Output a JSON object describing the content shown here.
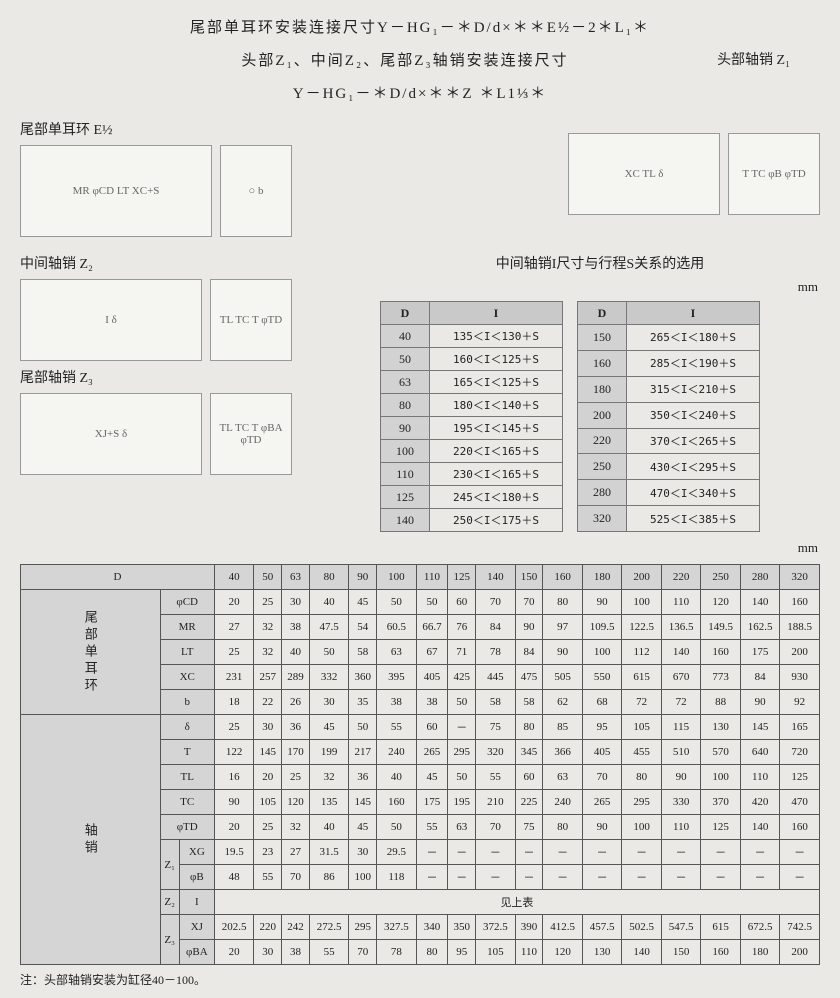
{
  "titles": {
    "line1": "尾部单耳环安装连接尺寸Y－HG₁－＊D/d×＊＊E½－2＊L₁＊",
    "line2": "头部Z₁、中间Z₂、尾部Z₃轴销安装连接尺寸",
    "line3": "Y－HG₁－＊D/d×＊＊Z ＊L1⅓＊"
  },
  "labels": {
    "e12": "尾部单耳环  E½",
    "z1": "头部轴销  Z₁",
    "z2": "中间轴销  Z₂",
    "z3": "尾部轴销  Z₃",
    "di_title": "中间轴销I尺寸与行程S关系的选用",
    "see_above": "见上表",
    "note": "注：头部轴销安装为缸径40－100。",
    "mm": "mm"
  },
  "di_left": {
    "headers": [
      "D",
      "I"
    ],
    "rows": [
      [
        "40",
        "135＜I＜130＋S"
      ],
      [
        "50",
        "160＜I＜125＋S"
      ],
      [
        "63",
        "165＜I＜125＋S"
      ],
      [
        "80",
        "180＜I＜140＋S"
      ],
      [
        "90",
        "195＜I＜145＋S"
      ],
      [
        "100",
        "220＜I＜165＋S"
      ],
      [
        "110",
        "230＜I＜165＋S"
      ],
      [
        "125",
        "245＜I＜180＋S"
      ],
      [
        "140",
        "250＜I＜175＋S"
      ]
    ]
  },
  "di_right": {
    "headers": [
      "D",
      "I"
    ],
    "rows": [
      [
        "150",
        "265＜I＜180＋S"
      ],
      [
        "160",
        "285＜I＜190＋S"
      ],
      [
        "180",
        "315＜I＜210＋S"
      ],
      [
        "200",
        "350＜I＜240＋S"
      ],
      [
        "220",
        "370＜I＜265＋S"
      ],
      [
        "250",
        "430＜I＜295＋S"
      ],
      [
        "280",
        "470＜I＜340＋S"
      ],
      [
        "320",
        "525＜I＜385＋S"
      ]
    ]
  },
  "big": {
    "D_values": [
      "40",
      "50",
      "63",
      "80",
      "90",
      "100",
      "110",
      "125",
      "140",
      "150",
      "160",
      "180",
      "200",
      "220",
      "250",
      "280",
      "320"
    ],
    "group1": {
      "label": "尾部单耳环",
      "rows": [
        {
          "p": "φCD",
          "v": [
            "20",
            "25",
            "30",
            "40",
            "45",
            "50",
            "50",
            "60",
            "70",
            "70",
            "80",
            "90",
            "100",
            "110",
            "120",
            "140",
            "160"
          ]
        },
        {
          "p": "MR",
          "v": [
            "27",
            "32",
            "38",
            "47.5",
            "54",
            "60.5",
            "66.7",
            "76",
            "84",
            "90",
            "97",
            "109.5",
            "122.5",
            "136.5",
            "149.5",
            "162.5",
            "188.5"
          ]
        },
        {
          "p": "LT",
          "v": [
            "25",
            "32",
            "40",
            "50",
            "58",
            "63",
            "67",
            "71",
            "78",
            "84",
            "90",
            "100",
            "112",
            "140",
            "160",
            "175",
            "200"
          ]
        },
        {
          "p": "XC",
          "v": [
            "231",
            "257",
            "289",
            "332",
            "360",
            "395",
            "405",
            "425",
            "445",
            "475",
            "505",
            "550",
            "615",
            "670",
            "773",
            "84",
            "930"
          ]
        },
        {
          "p": "b",
          "v": [
            "18",
            "22",
            "26",
            "30",
            "35",
            "38",
            "38",
            "50",
            "58",
            "58",
            "62",
            "68",
            "72",
            "72",
            "88",
            "90",
            "92"
          ]
        }
      ]
    },
    "group2": {
      "label": "轴销",
      "rows": [
        {
          "p": "δ",
          "v": [
            "25",
            "30",
            "36",
            "45",
            "50",
            "55",
            "60",
            "－",
            "75",
            "80",
            "85",
            "95",
            "105",
            "115",
            "130",
            "145",
            "165"
          ]
        },
        {
          "p": "T",
          "v": [
            "122",
            "145",
            "170",
            "199",
            "217",
            "240",
            "265",
            "295",
            "320",
            "345",
            "366",
            "405",
            "455",
            "510",
            "570",
            "640",
            "720"
          ]
        },
        {
          "p": "TL",
          "v": [
            "16",
            "20",
            "25",
            "32",
            "36",
            "40",
            "45",
            "50",
            "55",
            "60",
            "63",
            "70",
            "80",
            "90",
            "100",
            "110",
            "125"
          ]
        },
        {
          "p": "TC",
          "v": [
            "90",
            "105",
            "120",
            "135",
            "145",
            "160",
            "175",
            "195",
            "210",
            "225",
            "240",
            "265",
            "295",
            "330",
            "370",
            "420",
            "470"
          ]
        },
        {
          "p": "φTD",
          "v": [
            "20",
            "25",
            "32",
            "40",
            "45",
            "50",
            "55",
            "63",
            "70",
            "75",
            "80",
            "90",
            "100",
            "110",
            "125",
            "140",
            "160"
          ]
        }
      ],
      "z1": [
        {
          "p": "XG",
          "v": [
            "19.5",
            "23",
            "27",
            "31.5",
            "30",
            "29.5",
            "－",
            "－",
            "－",
            "－",
            "－",
            "－",
            "－",
            "－",
            "－",
            "－",
            "－"
          ]
        },
        {
          "p": "φB",
          "v": [
            "48",
            "55",
            "70",
            "86",
            "100",
            "118",
            "－",
            "－",
            "－",
            "－",
            "－",
            "－",
            "－",
            "－",
            "－",
            "－",
            "－"
          ]
        }
      ],
      "z3": [
        {
          "p": "XJ",
          "v": [
            "202.5",
            "220",
            "242",
            "272.5",
            "295",
            "327.5",
            "340",
            "350",
            "372.5",
            "390",
            "412.5",
            "457.5",
            "502.5",
            "547.5",
            "615",
            "672.5",
            "742.5"
          ]
        },
        {
          "p": "φBA",
          "v": [
            "20",
            "30",
            "38",
            "55",
            "70",
            "78",
            "80",
            "95",
            "105",
            "110",
            "120",
            "130",
            "140",
            "150",
            "160",
            "180",
            "200"
          ]
        }
      ]
    }
  }
}
